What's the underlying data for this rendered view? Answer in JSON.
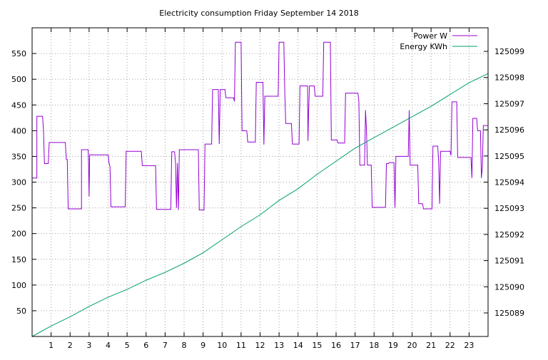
{
  "chart_data": {
    "type": "line",
    "title": "Electricity consumption Friday September 14 2018",
    "xlabel": "",
    "ylabel": "",
    "y2label": "",
    "grid": true,
    "legend_position": "top-right",
    "xlim": [
      0,
      24
    ],
    "ylim": [
      0,
      600
    ],
    "y2lim": [
      125088.1,
      125099.9
    ],
    "x_ticks": [
      1,
      2,
      3,
      4,
      5,
      6,
      7,
      8,
      9,
      10,
      11,
      12,
      13,
      14,
      15,
      16,
      17,
      18,
      19,
      20,
      21,
      22,
      23
    ],
    "y_ticks": [
      50,
      100,
      150,
      200,
      250,
      300,
      350,
      400,
      450,
      500,
      550
    ],
    "y2_ticks": [
      125089,
      125090,
      125091,
      125092,
      125093,
      125094,
      125095,
      125096,
      125097,
      125098,
      125099
    ],
    "series": [
      {
        "name": "Power W",
        "axis": "left",
        "color": "#9400d3",
        "points": [
          [
            0,
            308
          ],
          [
            0.25,
            308
          ],
          [
            0.25,
            428
          ],
          [
            0.55,
            428
          ],
          [
            0.6,
            400
          ],
          [
            0.65,
            336
          ],
          [
            0.85,
            336
          ],
          [
            0.9,
            377
          ],
          [
            1.75,
            377
          ],
          [
            1.8,
            344
          ],
          [
            1.85,
            344
          ],
          [
            1.9,
            248
          ],
          [
            2.6,
            248
          ],
          [
            2.6,
            363
          ],
          [
            2.95,
            363
          ],
          [
            2.97,
            337
          ],
          [
            3.0,
            272
          ],
          [
            3.03,
            353
          ],
          [
            4.0,
            353
          ],
          [
            4.05,
            337
          ],
          [
            4.1,
            330
          ],
          [
            4.15,
            252
          ],
          [
            4.9,
            252
          ],
          [
            4.95,
            360
          ],
          [
            5.75,
            360
          ],
          [
            5.8,
            332
          ],
          [
            6.5,
            332
          ],
          [
            6.55,
            247
          ],
          [
            7.3,
            247
          ],
          [
            7.35,
            359
          ],
          [
            7.5,
            359
          ],
          [
            7.55,
            337
          ],
          [
            7.6,
            250
          ],
          [
            7.65,
            337
          ],
          [
            7.7,
            246
          ],
          [
            7.75,
            363
          ],
          [
            8.75,
            363
          ],
          [
            8.8,
            246
          ],
          [
            9.05,
            246
          ],
          [
            9.1,
            374
          ],
          [
            9.45,
            374
          ],
          [
            9.5,
            480
          ],
          [
            9.8,
            480
          ],
          [
            9.85,
            374
          ],
          [
            9.9,
            480
          ],
          [
            10.15,
            480
          ],
          [
            10.2,
            464
          ],
          [
            10.6,
            464
          ],
          [
            10.65,
            457
          ],
          [
            10.7,
            572
          ],
          [
            11.0,
            572
          ],
          [
            11.05,
            400
          ],
          [
            11.3,
            400
          ],
          [
            11.35,
            378
          ],
          [
            11.75,
            378
          ],
          [
            11.8,
            494
          ],
          [
            12.15,
            494
          ],
          [
            12.2,
            373
          ],
          [
            12.25,
            467
          ],
          [
            12.95,
            467
          ],
          [
            13.0,
            572
          ],
          [
            13.25,
            572
          ],
          [
            13.3,
            473
          ],
          [
            13.35,
            414
          ],
          [
            13.65,
            414
          ],
          [
            13.7,
            374
          ],
          [
            14.05,
            374
          ],
          [
            14.1,
            487
          ],
          [
            14.5,
            487
          ],
          [
            14.52,
            380
          ],
          [
            14.55,
            433
          ],
          [
            14.6,
            487
          ],
          [
            14.85,
            487
          ],
          [
            14.9,
            467
          ],
          [
            15.3,
            467
          ],
          [
            15.35,
            572
          ],
          [
            15.7,
            572
          ],
          [
            15.75,
            382
          ],
          [
            16.05,
            382
          ],
          [
            16.1,
            376
          ],
          [
            16.45,
            376
          ],
          [
            16.5,
            473
          ],
          [
            17.15,
            473
          ],
          [
            17.2,
            457
          ],
          [
            17.25,
            333
          ],
          [
            17.5,
            333
          ],
          [
            17.55,
            440
          ],
          [
            17.6,
            400
          ],
          [
            17.65,
            333
          ],
          [
            17.85,
            333
          ],
          [
            17.9,
            251
          ],
          [
            18.6,
            251
          ],
          [
            18.65,
            336
          ],
          [
            18.75,
            336
          ],
          [
            18.8,
            338
          ],
          [
            19.05,
            338
          ],
          [
            19.1,
            250
          ],
          [
            19.15,
            350
          ],
          [
            19.8,
            350
          ],
          [
            19.85,
            440
          ],
          [
            19.9,
            333
          ],
          [
            20.3,
            333
          ],
          [
            20.35,
            258
          ],
          [
            20.55,
            258
          ],
          [
            20.6,
            248
          ],
          [
            21.05,
            248
          ],
          [
            21.1,
            370
          ],
          [
            21.35,
            370
          ],
          [
            21.4,
            340
          ],
          [
            21.45,
            258
          ],
          [
            21.5,
            360
          ],
          [
            22.0,
            360
          ],
          [
            22.05,
            352
          ],
          [
            22.1,
            456
          ],
          [
            22.35,
            456
          ],
          [
            22.4,
            348
          ],
          [
            23.1,
            348
          ],
          [
            23.15,
            308
          ],
          [
            23.2,
            424
          ],
          [
            23.4,
            424
          ],
          [
            23.45,
            400
          ],
          [
            23.6,
            400
          ],
          [
            23.65,
            308
          ],
          [
            23.7,
            330
          ],
          [
            23.75,
            410
          ],
          [
            24.0,
            410
          ]
        ]
      },
      {
        "name": "Energy KWh",
        "axis": "right",
        "color": "#009e73",
        "points": [
          [
            0,
            125088.1
          ],
          [
            1,
            125088.5
          ],
          [
            2,
            125088.85
          ],
          [
            3,
            125089.25
          ],
          [
            4,
            125089.6
          ],
          [
            5,
            125089.9
          ],
          [
            6,
            125090.25
          ],
          [
            7,
            125090.55
          ],
          [
            8,
            125090.9
          ],
          [
            9,
            125091.3
          ],
          [
            10,
            125091.8
          ],
          [
            11,
            125092.3
          ],
          [
            12,
            125092.75
          ],
          [
            13,
            125093.3
          ],
          [
            14,
            125093.75
          ],
          [
            15,
            125094.3
          ],
          [
            16,
            125094.8
          ],
          [
            17,
            125095.3
          ],
          [
            18,
            125095.7
          ],
          [
            19,
            125096.1
          ],
          [
            20,
            125096.5
          ],
          [
            21,
            125096.9
          ],
          [
            22,
            125097.35
          ],
          [
            23,
            125097.8
          ],
          [
            24,
            125098.15
          ]
        ]
      }
    ]
  }
}
